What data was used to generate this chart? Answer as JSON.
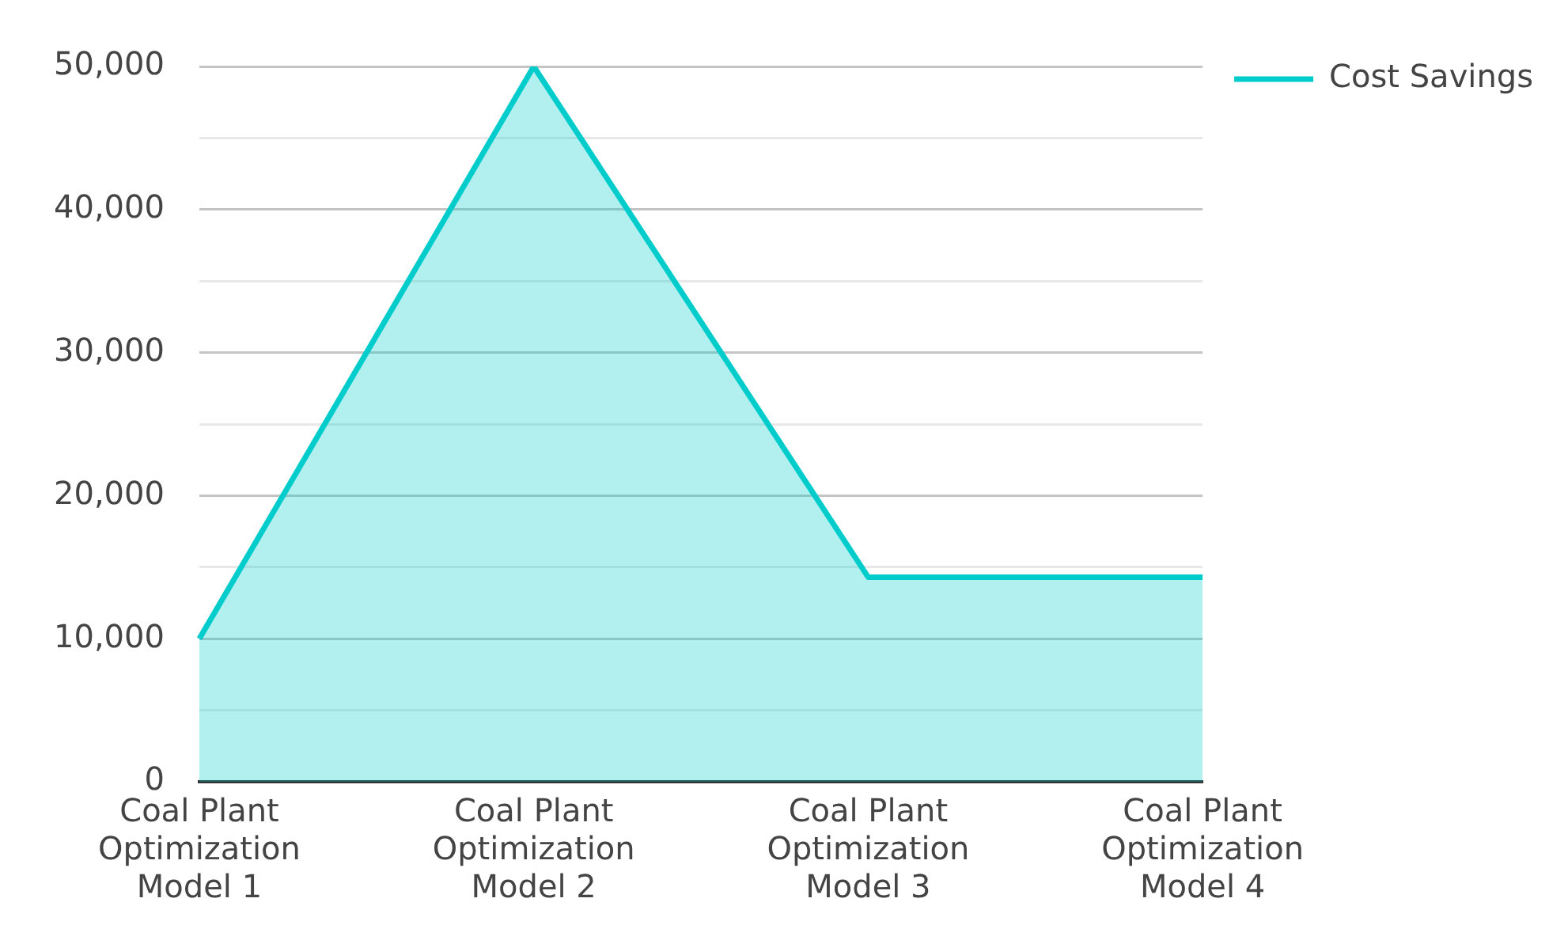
{
  "chart_data": {
    "type": "area",
    "categories": [
      "Coal Plant Optimization Model 1",
      "Coal Plant Optimization Model 2",
      "Coal Plant Optimization Model 3",
      "Coal Plant Optimization Model 4"
    ],
    "series": [
      {
        "name": "Cost Savings",
        "color": "#00cccc",
        "values": [
          10000,
          50000,
          14300,
          14300
        ]
      }
    ],
    "ylim": [
      0,
      50000
    ],
    "yticks": [
      0,
      {
        "value": 5000,
        "label": null
      },
      "10,000",
      {
        "value": 15000,
        "label": null
      },
      {
        "value": 20000,
        "label": "20,000"
      },
      {
        "value": 25000,
        "label": null
      },
      {
        "value": 30000,
        "label": "30,000"
      },
      {
        "value": 35000,
        "label": null
      },
      {
        "value": 40000,
        "label": "40,000"
      },
      {
        "value": 45000,
        "label": null
      },
      {
        "value": 50000,
        "label": "50,000"
      }
    ],
    "grid": "y",
    "legend": "top right",
    "marker": "none"
  }
}
